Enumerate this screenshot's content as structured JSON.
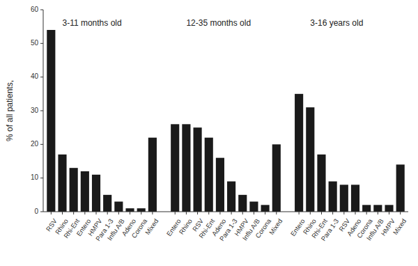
{
  "chart_data": {
    "type": "bar",
    "y_label": "% of all patients,",
    "categories": [
      "RSV",
      "Rhino",
      "Rhi-Ent",
      "Entero",
      "HMPV",
      "Para 1-3",
      "Influ A/B",
      "Adeno",
      "Corona",
      "Mixed",
      null,
      "Entero",
      "Rhino",
      "RSV",
      "Rhi-Ent",
      "Adeno",
      "Para 1-3",
      "HMPV",
      "Influ A/B",
      "Corona",
      "Mixed",
      null,
      "Entero",
      "Rhino",
      "Rhi-Ent",
      "Para 1-3",
      "RSV",
      "Adeno",
      "Corona",
      "Influ A/B",
      "HMPV",
      "Mixed"
    ],
    "values": [
      54,
      17,
      13,
      12,
      11,
      5,
      3,
      1,
      1,
      22,
      null,
      26,
      26,
      25,
      22,
      16,
      9,
      5,
      3,
      2,
      20,
      null,
      35,
      31,
      17,
      9,
      8,
      8,
      2,
      2,
      2,
      14
    ],
    "color": "#1a1a1a",
    "ylim": [
      0,
      60
    ],
    "yticks": [
      0,
      10,
      20,
      30,
      40,
      50,
      60
    ],
    "grid": false,
    "annotations": [
      {
        "text": "3-11 months old",
        "y": 57
      },
      {
        "text": "12-35 months old",
        "y": 57
      },
      {
        "text": "3-16 years old",
        "y": 57
      }
    ]
  }
}
